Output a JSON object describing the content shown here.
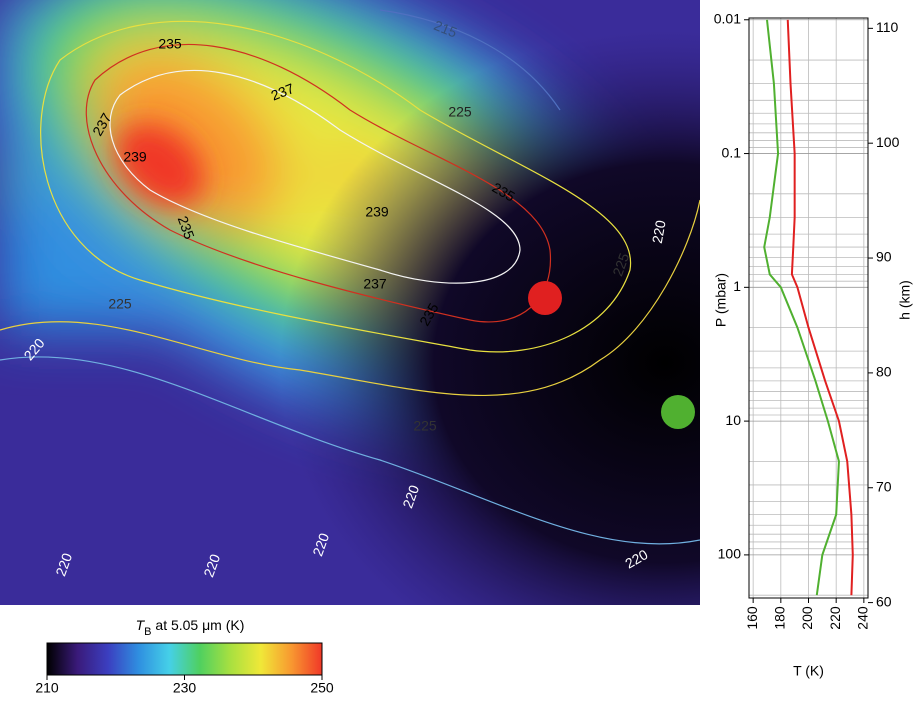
{
  "chart_data": [
    {
      "type": "heatmap",
      "annotations": [
        "235",
        "237",
        "225",
        "215",
        "237",
        "239",
        "235",
        "239",
        "235",
        "237",
        "235",
        "225",
        "220",
        "225",
        "220",
        "225",
        "220",
        "220",
        "220",
        "220",
        "220"
      ],
      "colorbar_label": {
        "symbol": "T",
        "subscript": "B",
        "text": " at 5.05 μm (K)"
      },
      "clim": [
        210,
        250
      ],
      "cticks": [
        210,
        230,
        250
      ],
      "colormap": [
        "#000000",
        "#3a1a7a",
        "#3b3fc0",
        "#2f8fe0",
        "#45d0e8",
        "#4fd060",
        "#a8e040",
        "#f0e838",
        "#f89830",
        "#f03828"
      ]
    },
    {
      "type": "line",
      "y": [
        0.01,
        0.03,
        0.1,
        0.3,
        0.5,
        0.8,
        1,
        2,
        5,
        10,
        20,
        50,
        100,
        200
      ],
      "series": [
        {
          "color": "#e02020",
          "values": [
            185,
            187,
            190,
            190,
            189,
            188,
            192,
            200,
            212,
            222,
            228,
            231,
            232,
            231
          ]
        },
        {
          "color": "#50b030",
          "values": [
            170,
            175,
            178,
            172,
            168,
            172,
            180,
            192,
            205,
            214,
            222,
            220,
            210,
            206
          ]
        }
      ],
      "xlabel": "T (K)",
      "ylabel": "P (mbar)",
      "y2label": "h (km)",
      "xlim": [
        157,
        243
      ],
      "xticks": [
        160,
        180,
        200,
        220,
        240
      ],
      "ylim": [
        0.0097,
        210
      ],
      "yticks": [
        0.01,
        0.1,
        1,
        10,
        100
      ],
      "ylog": true,
      "y2lim": [
        60.4,
        110.9
      ],
      "y2ticks": [
        60,
        70,
        80,
        90,
        100,
        110
      ],
      "grid": true
    }
  ]
}
